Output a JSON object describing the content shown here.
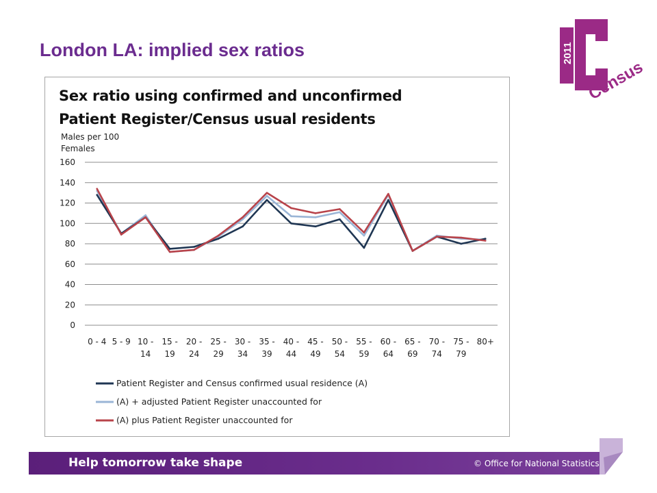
{
  "slide": {
    "title": "London LA: implied sex ratios",
    "footer_left": "Help tomorrow take shape",
    "footer_right": "© Office for National Statistics",
    "brand_color": "#6b2c8f"
  },
  "logo": {
    "year": "2011",
    "word": "Census"
  },
  "chart_data": {
    "type": "line",
    "title_lines": [
      "Sex ratio using confirmed and unconfirmed",
      "Patient Register/Census usual residents"
    ],
    "ylabel_lines": [
      "Males per 100",
      "Females"
    ],
    "ylim": [
      0,
      160
    ],
    "yticks": [
      0,
      20,
      40,
      60,
      80,
      100,
      120,
      140,
      160
    ],
    "grid": true,
    "legend_position": "bottom",
    "categories": [
      [
        "0 - 4"
      ],
      [
        "5 - 9"
      ],
      [
        "10 -",
        "14"
      ],
      [
        "15 -",
        "19"
      ],
      [
        "20 -",
        "24"
      ],
      [
        "25 -",
        "29"
      ],
      [
        "30 -",
        "34"
      ],
      [
        "35 -",
        "39"
      ],
      [
        "40 -",
        "44"
      ],
      [
        "45 -",
        "49"
      ],
      [
        "50 -",
        "54"
      ],
      [
        "55 -",
        "59"
      ],
      [
        "60 -",
        "64"
      ],
      [
        "65 -",
        "69"
      ],
      [
        "70 -",
        "74"
      ],
      [
        "75 -",
        "79"
      ],
      [
        "80+"
      ]
    ],
    "series": [
      {
        "name": "Patient Register and Census confirmed usual residence (A)",
        "color": "#1f3653",
        "values": [
          128,
          90,
          106,
          75,
          77,
          85,
          97,
          123,
          100,
          97,
          104,
          76,
          123,
          73,
          87,
          80,
          85
        ]
      },
      {
        "name": "(A) + adjusted Patient Register unaccounted for",
        "color": "#9ab5d6",
        "values": [
          132,
          90,
          108,
          72,
          74,
          87,
          104,
          127,
          107,
          106,
          111,
          88,
          128,
          73,
          88,
          85,
          84
        ]
      },
      {
        "name": "(A) plus Patient Register unaccounted for",
        "color": "#b8434a",
        "values": [
          134,
          89,
          106,
          72,
          74,
          88,
          106,
          130,
          115,
          110,
          114,
          91,
          129,
          73,
          87,
          86,
          83
        ]
      }
    ]
  }
}
